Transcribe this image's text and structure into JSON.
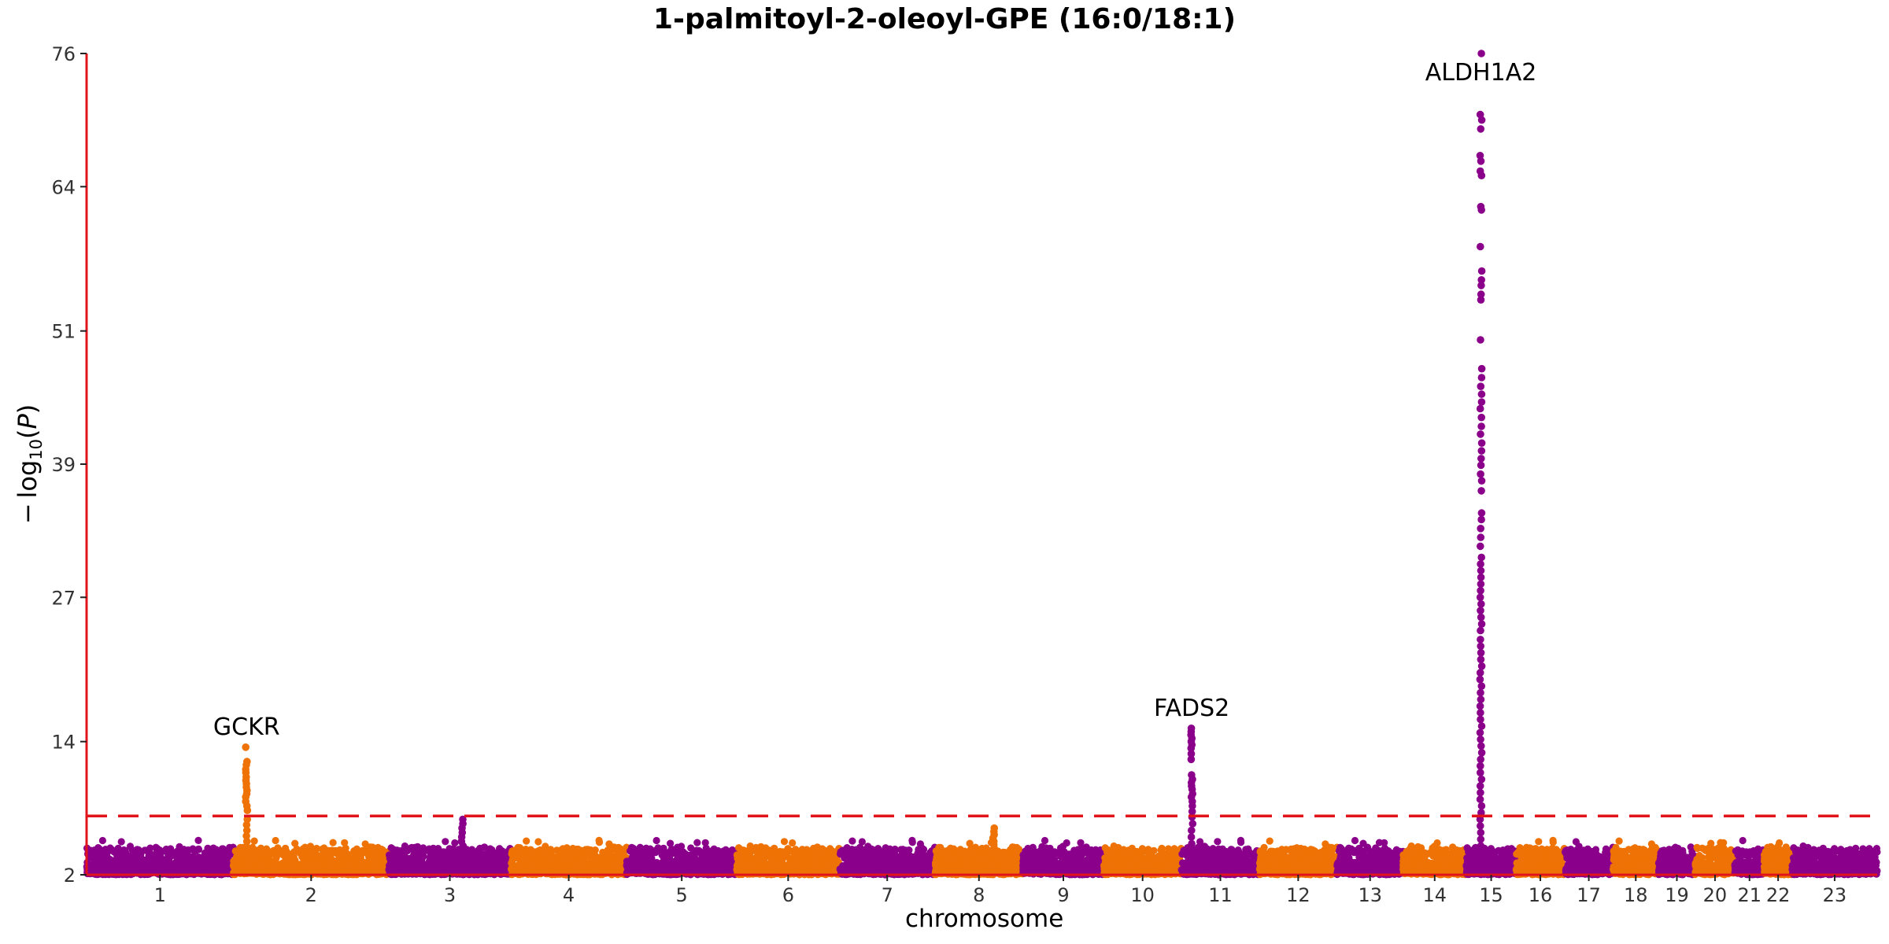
{
  "chart_data": {
    "type": "scatter",
    "title": "1-palmitoyl-2-oleoyl-GPE (16:0/18:1)",
    "xlabel": "chromosome",
    "ylabel": "−log10(P)",
    "ylim": [
      2,
      76
    ],
    "y_ticks": [
      "2",
      "14",
      "27",
      "39",
      "51",
      "64",
      "76"
    ],
    "y_tick_values": [
      2,
      14,
      27,
      39,
      51,
      64,
      76
    ],
    "significance_line": 7.3,
    "grid": false,
    "legend": "none",
    "colors": {
      "odd": "#8b008b",
      "even": "#ee7205",
      "axis": "#e0141a",
      "threshold": "#e0141a"
    },
    "chromosomes": [
      {
        "label": "1",
        "start": 0,
        "end": 10
      },
      {
        "label": "2",
        "start": 10,
        "end": 20.6
      },
      {
        "label": "3",
        "start": 20.6,
        "end": 28.9
      },
      {
        "label": "4",
        "start": 28.9,
        "end": 36.8
      },
      {
        "label": "5",
        "start": 36.8,
        "end": 44.3
      },
      {
        "label": "6",
        "start": 44.3,
        "end": 51.3
      },
      {
        "label": "7",
        "start": 51.3,
        "end": 57.8
      },
      {
        "label": "8",
        "start": 57.8,
        "end": 63.8
      },
      {
        "label": "9",
        "start": 63.8,
        "end": 69.3
      },
      {
        "label": "10",
        "start": 69.3,
        "end": 74.6
      },
      {
        "label": "11",
        "start": 74.6,
        "end": 79.9
      },
      {
        "label": "12",
        "start": 79.9,
        "end": 85.2
      },
      {
        "label": "13",
        "start": 85.2,
        "end": 89.7
      },
      {
        "label": "14",
        "start": 89.7,
        "end": 94.0
      },
      {
        "label": "15",
        "start": 94.0,
        "end": 97.4
      },
      {
        "label": "16",
        "start": 97.4,
        "end": 100.7
      },
      {
        "label": "17",
        "start": 100.7,
        "end": 104.0
      },
      {
        "label": "18",
        "start": 104.0,
        "end": 107.1
      },
      {
        "label": "19",
        "start": 107.1,
        "end": 109.6
      },
      {
        "label": "20",
        "start": 109.6,
        "end": 112.3
      },
      {
        "label": "21",
        "start": 112.3,
        "end": 114.3
      },
      {
        "label": "22",
        "start": 114.3,
        "end": 116.2
      },
      {
        "label": "23",
        "start": 116.2,
        "end": 122.0
      }
    ],
    "peaks": [
      {
        "chrom": "2",
        "x": 10.9,
        "top": 13.5,
        "values": [
          13.5,
          12.2,
          11.9,
          11.5,
          11.2,
          10.8,
          10.5,
          10.2,
          9.9,
          9.6,
          9.3,
          9.0,
          8.6,
          8.2,
          7.8,
          7.0,
          6.5,
          6.0,
          5.5,
          5.0,
          4.5,
          4.0
        ]
      },
      {
        "chrom": "3",
        "x": 25.6,
        "top": 7.0,
        "values": [
          7.0,
          6.6,
          6.2,
          5.8,
          5.4,
          5.0,
          4.6,
          4.2
        ]
      },
      {
        "chrom": "8",
        "x": 61.8,
        "top": 6.2,
        "values": [
          6.2,
          5.9,
          5.6,
          5.3,
          5.0,
          4.7,
          4.4,
          4.1
        ]
      },
      {
        "chrom": "11",
        "x": 75.3,
        "top": 15.2,
        "values": [
          15.2,
          14.9,
          14.6,
          14.3,
          14.0,
          13.7,
          13.4,
          12.9,
          12.4,
          11.0,
          10.6,
          10.3,
          10.0,
          9.7,
          9.3,
          9.0,
          8.6,
          8.2,
          7.7,
          7.2,
          6.6,
          6.0,
          5.4,
          4.8,
          4.2
        ]
      },
      {
        "chrom": "15",
        "x": 95.0,
        "top": 76.0,
        "values": [
          76.0,
          70.5,
          70.0,
          69.2,
          66.8,
          66.3,
          65.4,
          65.0,
          62.2,
          61.9,
          58.6,
          56.4,
          55.6,
          55.1,
          54.3,
          53.8,
          50.2,
          47.6,
          46.8,
          46.0,
          45.3,
          44.6,
          44.0,
          43.2,
          42.4,
          41.7,
          40.9,
          40.2,
          39.5,
          38.9,
          38.1,
          37.5,
          36.6,
          34.6,
          34.0,
          33.2,
          32.4,
          31.6,
          30.6,
          30.0,
          29.4,
          28.8,
          28.2,
          27.6,
          27.0,
          26.4,
          25.8,
          25.2,
          24.6,
          24.0,
          23.2,
          22.6,
          22.0,
          21.4,
          20.8,
          20.2,
          19.6,
          19.0,
          18.4,
          17.8,
          17.2,
          16.6,
          16.0,
          15.4,
          14.8,
          14.2,
          13.6,
          13.0,
          12.4,
          11.8,
          11.2,
          10.6,
          10.0,
          9.4,
          8.8,
          8.2,
          7.6,
          7.0,
          6.4,
          5.8,
          5.2,
          4.6,
          4.0
        ]
      }
    ],
    "annotations": [
      {
        "text": "GCKR",
        "x": 10.9,
        "y": 13.5
      },
      {
        "text": "FADS2",
        "x": 75.3,
        "y": 15.2
      },
      {
        "text": "ALDH1A2",
        "x": 95.0,
        "y": 76.0
      }
    ]
  }
}
